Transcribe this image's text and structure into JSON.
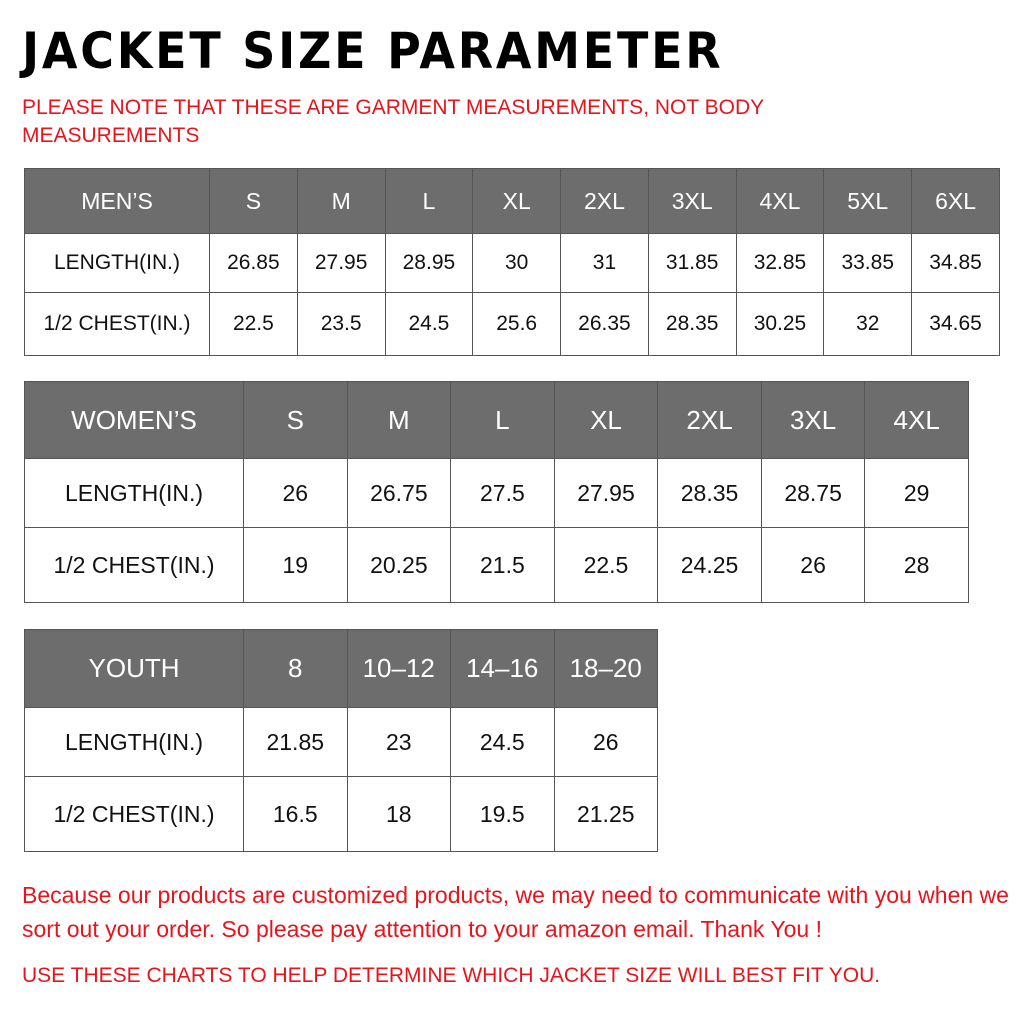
{
  "title": "JACKET SIZE PARAMETER",
  "note": "PLEASE NOTE THAT THESE ARE GARMENT MEASUREMENTS, NOT BODY MEASUREMENTS",
  "colors": {
    "header_bg": "#6d6d6d",
    "note_red": "#e8141c"
  },
  "tables": [
    {
      "id": "mens",
      "header": [
        "MEN’S",
        "S",
        "M",
        "L",
        "XL",
        "2XL",
        "3XL",
        "4XL",
        "5XL",
        "6XL"
      ],
      "rows": [
        [
          "LENGTH(IN.)",
          "26.85",
          "27.95",
          "28.95",
          "30",
          "31",
          "31.85",
          "32.85",
          "33.85",
          "34.85"
        ],
        [
          "1/2 CHEST(IN.)",
          "22.5",
          "23.5",
          "24.5",
          "25.6",
          "26.35",
          "28.35",
          "30.25",
          "32",
          "34.65"
        ]
      ]
    },
    {
      "id": "womens",
      "header": [
        "WOMEN’S",
        "S",
        "M",
        "L",
        "XL",
        "2XL",
        "3XL",
        "4XL"
      ],
      "rows": [
        [
          "LENGTH(IN.)",
          "26",
          "26.75",
          "27.5",
          "27.95",
          "28.35",
          "28.75",
          "29"
        ],
        [
          "1/2 CHEST(IN.)",
          "19",
          "20.25",
          "21.5",
          "22.5",
          "24.25",
          "26",
          "28"
        ]
      ]
    },
    {
      "id": "youth",
      "header": [
        "YOUTH",
        "8",
        "10–12",
        "14–16",
        "18–20"
      ],
      "rows": [
        [
          "LENGTH(IN.)",
          "21.85",
          "23",
          "24.5",
          "26"
        ],
        [
          "1/2 CHEST(IN.)",
          "16.5",
          "18",
          "19.5",
          "21.25"
        ]
      ]
    }
  ],
  "footer": {
    "message": "Because our products are customized products, we may need to communicate with you when we sort out your order. So please pay attention to your amazon email. Thank You !",
    "advice": "USE THESE CHARTS TO HELP DETERMINE WHICH JACKET SIZE WILL BEST FIT YOU."
  }
}
